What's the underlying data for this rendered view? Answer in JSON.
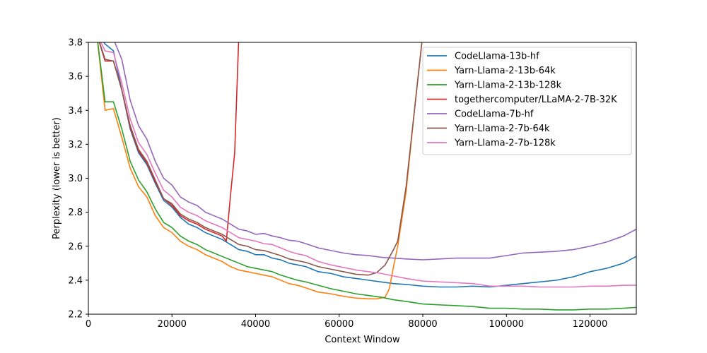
{
  "chart_data": {
    "type": "line",
    "title": "",
    "xlabel": "Context Window",
    "ylabel": "Perplexity (lower is better)",
    "xlim": [
      0,
      131072
    ],
    "ylim": [
      2.2,
      3.8
    ],
    "xticks": [
      0,
      20000,
      40000,
      60000,
      80000,
      100000,
      120000
    ],
    "xtick_labels": [
      "0",
      "20000",
      "40000",
      "60000",
      "80000",
      "100000",
      "120000"
    ],
    "yticks": [
      2.2,
      2.4,
      2.6,
      2.8,
      3.0,
      3.2,
      3.4,
      3.6,
      3.8
    ],
    "ytick_labels": [
      "2.2",
      "2.4",
      "2.6",
      "2.8",
      "3.0",
      "3.2",
      "3.4",
      "3.6",
      "3.8"
    ],
    "grid": false,
    "legend_position": "top-right",
    "series": [
      {
        "name": "CodeLlama-13b-hf",
        "color": "#1f77b4",
        "points": [
          [
            2000,
            3.85
          ],
          [
            4000,
            3.79
          ],
          [
            6000,
            3.75
          ],
          [
            8000,
            3.52
          ],
          [
            10000,
            3.29
          ],
          [
            12000,
            3.15
          ],
          [
            14000,
            3.08
          ],
          [
            16000,
            2.97
          ],
          [
            18000,
            2.87
          ],
          [
            20000,
            2.83
          ],
          [
            22000,
            2.77
          ],
          [
            24000,
            2.73
          ],
          [
            26000,
            2.71
          ],
          [
            28000,
            2.68
          ],
          [
            30000,
            2.66
          ],
          [
            32000,
            2.64
          ],
          [
            34000,
            2.61
          ],
          [
            36000,
            2.58
          ],
          [
            38000,
            2.57
          ],
          [
            40000,
            2.55
          ],
          [
            42000,
            2.55
          ],
          [
            44000,
            2.53
          ],
          [
            46000,
            2.52
          ],
          [
            48000,
            2.5
          ],
          [
            50000,
            2.49
          ],
          [
            52000,
            2.48
          ],
          [
            55000,
            2.45
          ],
          [
            58000,
            2.44
          ],
          [
            61000,
            2.42
          ],
          [
            64000,
            2.41
          ],
          [
            67000,
            2.4
          ],
          [
            70000,
            2.39
          ],
          [
            73000,
            2.38
          ],
          [
            76000,
            2.375
          ],
          [
            80000,
            2.365
          ],
          [
            84000,
            2.36
          ],
          [
            88000,
            2.36
          ],
          [
            92000,
            2.365
          ],
          [
            96000,
            2.36
          ],
          [
            100000,
            2.37
          ],
          [
            104000,
            2.38
          ],
          [
            108000,
            2.39
          ],
          [
            112000,
            2.4
          ],
          [
            116000,
            2.42
          ],
          [
            120000,
            2.45
          ],
          [
            124000,
            2.47
          ],
          [
            128000,
            2.5
          ],
          [
            131072,
            2.54
          ]
        ]
      },
      {
        "name": "Yarn-Llama-2-13b-64k",
        "color": "#ff7f0e",
        "points": [
          [
            2000,
            3.85
          ],
          [
            4000,
            3.4
          ],
          [
            6000,
            3.41
          ],
          [
            8000,
            3.24
          ],
          [
            10000,
            3.06
          ],
          [
            12000,
            2.95
          ],
          [
            14000,
            2.89
          ],
          [
            16000,
            2.78
          ],
          [
            18000,
            2.71
          ],
          [
            20000,
            2.68
          ],
          [
            22000,
            2.63
          ],
          [
            24000,
            2.6
          ],
          [
            26000,
            2.58
          ],
          [
            28000,
            2.55
          ],
          [
            30000,
            2.53
          ],
          [
            32000,
            2.51
          ],
          [
            34000,
            2.48
          ],
          [
            36000,
            2.46
          ],
          [
            38000,
            2.45
          ],
          [
            40000,
            2.44
          ],
          [
            42000,
            2.43
          ],
          [
            44000,
            2.42
          ],
          [
            46000,
            2.4
          ],
          [
            48000,
            2.38
          ],
          [
            50000,
            2.37
          ],
          [
            52000,
            2.355
          ],
          [
            55000,
            2.33
          ],
          [
            58000,
            2.32
          ],
          [
            61000,
            2.305
          ],
          [
            64000,
            2.295
          ],
          [
            67000,
            2.29
          ],
          [
            69000,
            2.29
          ],
          [
            71000,
            2.3
          ],
          [
            72000,
            2.35
          ],
          [
            73000,
            2.48
          ],
          [
            74000,
            2.6
          ],
          [
            76000,
            2.92
          ],
          [
            78000,
            3.4
          ],
          [
            80000,
            3.85
          ]
        ]
      },
      {
        "name": "Yarn-Llama-2-13b-128k",
        "color": "#2ca02c",
        "points": [
          [
            2000,
            3.85
          ],
          [
            4000,
            3.45
          ],
          [
            6000,
            3.45
          ],
          [
            8000,
            3.29
          ],
          [
            10000,
            3.1
          ],
          [
            12000,
            2.99
          ],
          [
            14000,
            2.92
          ],
          [
            16000,
            2.82
          ],
          [
            18000,
            2.74
          ],
          [
            20000,
            2.71
          ],
          [
            22000,
            2.66
          ],
          [
            24000,
            2.63
          ],
          [
            26000,
            2.61
          ],
          [
            28000,
            2.58
          ],
          [
            30000,
            2.56
          ],
          [
            32000,
            2.54
          ],
          [
            34000,
            2.52
          ],
          [
            36000,
            2.5
          ],
          [
            38000,
            2.48
          ],
          [
            40000,
            2.47
          ],
          [
            42000,
            2.46
          ],
          [
            44000,
            2.45
          ],
          [
            46000,
            2.43
          ],
          [
            48000,
            2.415
          ],
          [
            50000,
            2.4
          ],
          [
            52000,
            2.39
          ],
          [
            55000,
            2.37
          ],
          [
            58000,
            2.35
          ],
          [
            61000,
            2.335
          ],
          [
            64000,
            2.32
          ],
          [
            67000,
            2.31
          ],
          [
            70000,
            2.3
          ],
          [
            73000,
            2.285
          ],
          [
            76000,
            2.275
          ],
          [
            80000,
            2.26
          ],
          [
            84000,
            2.255
          ],
          [
            88000,
            2.25
          ],
          [
            92000,
            2.245
          ],
          [
            96000,
            2.235
          ],
          [
            100000,
            2.235
          ],
          [
            104000,
            2.23
          ],
          [
            108000,
            2.23
          ],
          [
            112000,
            2.225
          ],
          [
            116000,
            2.225
          ],
          [
            120000,
            2.23
          ],
          [
            124000,
            2.23
          ],
          [
            128000,
            2.235
          ],
          [
            131072,
            2.24
          ]
        ]
      },
      {
        "name": "togethercomputer/LLaMA-2-7B-32K",
        "color": "#d62728",
        "points": [
          [
            2000,
            3.85
          ],
          [
            4000,
            3.69
          ],
          [
            6000,
            3.69
          ],
          [
            8000,
            3.52
          ],
          [
            10000,
            3.3
          ],
          [
            12000,
            3.16
          ],
          [
            14000,
            3.09
          ],
          [
            16000,
            2.98
          ],
          [
            18000,
            2.88
          ],
          [
            20000,
            2.84
          ],
          [
            22000,
            2.78
          ],
          [
            24000,
            2.75
          ],
          [
            26000,
            2.73
          ],
          [
            28000,
            2.7
          ],
          [
            30000,
            2.68
          ],
          [
            32000,
            2.66
          ],
          [
            33000,
            2.63
          ],
          [
            34000,
            2.9
          ],
          [
            35000,
            3.15
          ],
          [
            36000,
            3.85
          ]
        ]
      },
      {
        "name": "CodeLlama-7b-hf",
        "color": "#9467bd",
        "points": [
          [
            5500,
            3.85
          ],
          [
            8000,
            3.7
          ],
          [
            10000,
            3.46
          ],
          [
            12000,
            3.31
          ],
          [
            14000,
            3.23
          ],
          [
            16000,
            3.1
          ],
          [
            18000,
            3.0
          ],
          [
            20000,
            2.96
          ],
          [
            22000,
            2.89
          ],
          [
            24000,
            2.86
          ],
          [
            26000,
            2.84
          ],
          [
            28000,
            2.8
          ],
          [
            30000,
            2.78
          ],
          [
            32000,
            2.76
          ],
          [
            34000,
            2.73
          ],
          [
            36000,
            2.7
          ],
          [
            38000,
            2.69
          ],
          [
            40000,
            2.67
          ],
          [
            42000,
            2.675
          ],
          [
            44000,
            2.66
          ],
          [
            46000,
            2.65
          ],
          [
            48000,
            2.635
          ],
          [
            50000,
            2.63
          ],
          [
            52000,
            2.615
          ],
          [
            55000,
            2.59
          ],
          [
            58000,
            2.575
          ],
          [
            61000,
            2.56
          ],
          [
            64000,
            2.55
          ],
          [
            67000,
            2.545
          ],
          [
            70000,
            2.535
          ],
          [
            73000,
            2.53
          ],
          [
            76000,
            2.525
          ],
          [
            80000,
            2.52
          ],
          [
            84000,
            2.525
          ],
          [
            88000,
            2.53
          ],
          [
            92000,
            2.53
          ],
          [
            96000,
            2.53
          ],
          [
            100000,
            2.545
          ],
          [
            104000,
            2.56
          ],
          [
            108000,
            2.565
          ],
          [
            112000,
            2.57
          ],
          [
            116000,
            2.58
          ],
          [
            120000,
            2.6
          ],
          [
            124000,
            2.625
          ],
          [
            128000,
            2.66
          ],
          [
            131072,
            2.7
          ]
        ]
      },
      {
        "name": "Yarn-Llama-2-7b-64k",
        "color": "#8c564b",
        "points": [
          [
            2000,
            3.85
          ],
          [
            4000,
            3.7
          ],
          [
            6000,
            3.69
          ],
          [
            8000,
            3.52
          ],
          [
            10000,
            3.31
          ],
          [
            12000,
            3.17
          ],
          [
            14000,
            3.1
          ],
          [
            16000,
            2.99
          ],
          [
            18000,
            2.88
          ],
          [
            20000,
            2.85
          ],
          [
            22000,
            2.79
          ],
          [
            24000,
            2.76
          ],
          [
            26000,
            2.74
          ],
          [
            28000,
            2.71
          ],
          [
            30000,
            2.69
          ],
          [
            32000,
            2.67
          ],
          [
            34000,
            2.64
          ],
          [
            36000,
            2.61
          ],
          [
            38000,
            2.6
          ],
          [
            40000,
            2.58
          ],
          [
            42000,
            2.575
          ],
          [
            44000,
            2.56
          ],
          [
            46000,
            2.545
          ],
          [
            48000,
            2.525
          ],
          [
            50000,
            2.515
          ],
          [
            52000,
            2.505
          ],
          [
            55000,
            2.48
          ],
          [
            58000,
            2.465
          ],
          [
            61000,
            2.45
          ],
          [
            64000,
            2.435
          ],
          [
            67000,
            2.43
          ],
          [
            69000,
            2.445
          ],
          [
            71000,
            2.49
          ],
          [
            73000,
            2.58
          ],
          [
            74000,
            2.63
          ],
          [
            76000,
            2.95
          ],
          [
            78000,
            3.4
          ],
          [
            80000,
            3.85
          ]
        ]
      },
      {
        "name": "Yarn-Llama-2-7b-128k",
        "color": "#e377c2",
        "points": [
          [
            2000,
            3.85
          ],
          [
            4000,
            3.75
          ],
          [
            6000,
            3.74
          ],
          [
            8000,
            3.56
          ],
          [
            10000,
            3.35
          ],
          [
            12000,
            3.21
          ],
          [
            14000,
            3.14
          ],
          [
            16000,
            3.03
          ],
          [
            18000,
            2.93
          ],
          [
            20000,
            2.89
          ],
          [
            22000,
            2.83
          ],
          [
            24000,
            2.8
          ],
          [
            26000,
            2.78
          ],
          [
            28000,
            2.75
          ],
          [
            30000,
            2.73
          ],
          [
            32000,
            2.71
          ],
          [
            34000,
            2.68
          ],
          [
            36000,
            2.65
          ],
          [
            38000,
            2.64
          ],
          [
            40000,
            2.63
          ],
          [
            42000,
            2.615
          ],
          [
            44000,
            2.61
          ],
          [
            46000,
            2.59
          ],
          [
            48000,
            2.57
          ],
          [
            50000,
            2.555
          ],
          [
            52000,
            2.545
          ],
          [
            55000,
            2.51
          ],
          [
            58000,
            2.49
          ],
          [
            61000,
            2.475
          ],
          [
            64000,
            2.46
          ],
          [
            67000,
            2.45
          ],
          [
            70000,
            2.44
          ],
          [
            73000,
            2.425
          ],
          [
            76000,
            2.41
          ],
          [
            80000,
            2.395
          ],
          [
            84000,
            2.39
          ],
          [
            88000,
            2.385
          ],
          [
            92000,
            2.38
          ],
          [
            96000,
            2.365
          ],
          [
            100000,
            2.365
          ],
          [
            104000,
            2.365
          ],
          [
            108000,
            2.36
          ],
          [
            112000,
            2.36
          ],
          [
            116000,
            2.36
          ],
          [
            120000,
            2.365
          ],
          [
            124000,
            2.365
          ],
          [
            128000,
            2.37
          ],
          [
            131072,
            2.37
          ]
        ]
      }
    ]
  }
}
